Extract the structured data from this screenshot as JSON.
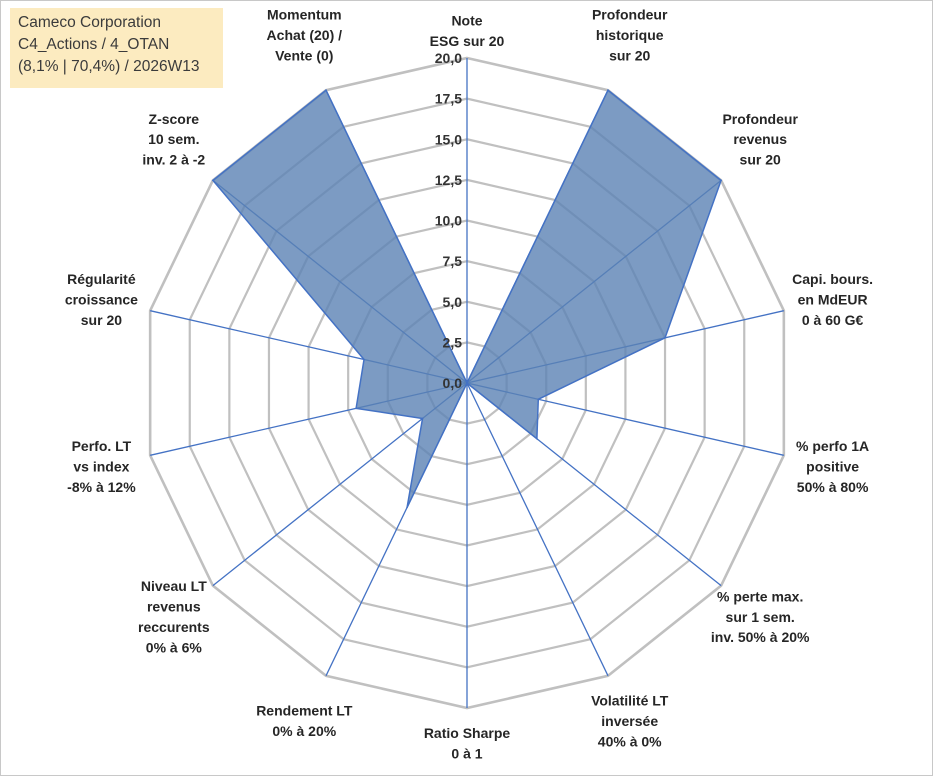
{
  "header": {
    "line1": "Cameco Corporation",
    "line2": "C4_Actions / 4_OTAN",
    "line3": "(8,1% | 70,4%) / 2026W13"
  },
  "colors": {
    "fill": "#5b82b4",
    "stroke": "#4472c4",
    "grid": "#c0c0c0",
    "title_bg": "#fcebc0"
  },
  "chart_data": {
    "type": "radar",
    "title": "Cameco Corporation",
    "rmin": 0,
    "rmax": 20,
    "ticks": [
      "0,0",
      "2,5",
      "5,0",
      "7,5",
      "10,0",
      "12,5",
      "15,0",
      "17,5",
      "20,0"
    ],
    "tick_values": [
      0,
      2.5,
      5,
      7.5,
      10,
      12.5,
      15,
      17.5,
      20
    ],
    "grid": true,
    "axes": [
      {
        "lines": [
          "Note",
          "ESG sur 20"
        ],
        "value": 0
      },
      {
        "lines": [
          "Profondeur",
          "historique",
          "sur 20"
        ],
        "value": 20
      },
      {
        "lines": [
          "Profondeur",
          "revenus",
          "sur 20"
        ],
        "value": 20
      },
      {
        "lines": [
          "Capi. bours.",
          "en MdEUR",
          "0 à 60 G€"
        ],
        "value": 12.5
      },
      {
        "lines": [
          "% perfo 1A",
          "positive",
          "50% à 80%"
        ],
        "value": 4.5
      },
      {
        "lines": [
          "% perte max.",
          "sur 1 sem.",
          "inv. 50% à 20%"
        ],
        "value": 5.5
      },
      {
        "lines": [
          "Volatilité LT",
          "inversée",
          "40% à 0%"
        ],
        "value": 0
      },
      {
        "lines": [
          "Ratio Sharpe",
          "0 à 1"
        ],
        "value": 0
      },
      {
        "lines": [
          "Rendement LT",
          "0% à 20%"
        ],
        "value": 8.5
      },
      {
        "lines": [
          "Niveau LT",
          "revenus",
          "reccurents",
          "0% à 6%"
        ],
        "value": 3.5
      },
      {
        "lines": [
          "Perfo. LT",
          "vs index",
          "-8% à 12%"
        ],
        "value": 7
      },
      {
        "lines": [
          "Régularité",
          "croissance",
          "sur 20"
        ],
        "value": 6.5
      },
      {
        "lines": [
          "Z-score",
          "10 sem.",
          "inv. 2 à -2"
        ],
        "value": 20
      },
      {
        "lines": [
          "Momentum",
          "Achat (20) /",
          "Vente (0)"
        ],
        "value": 20
      }
    ]
  }
}
